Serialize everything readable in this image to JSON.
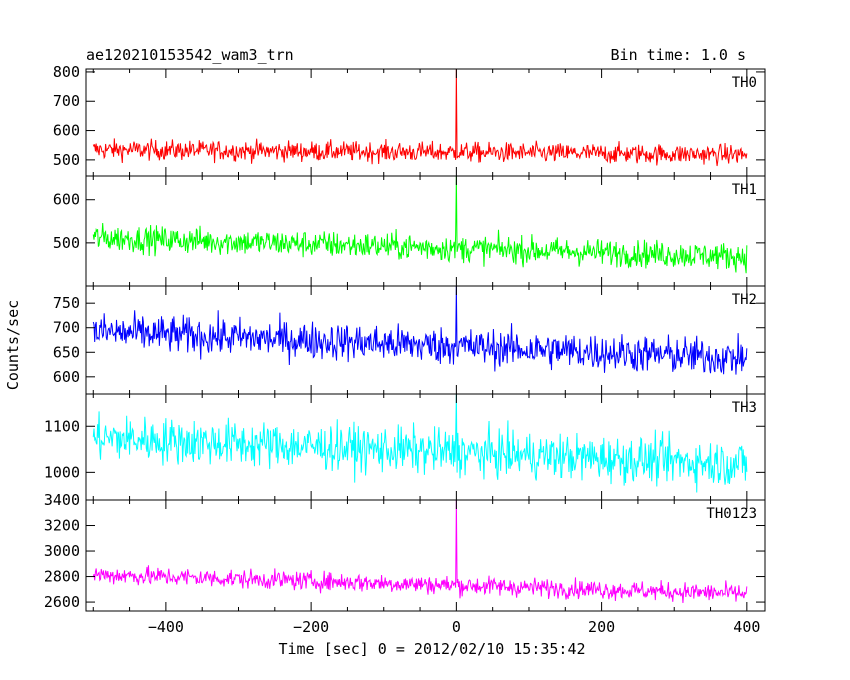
{
  "header": {
    "title": "ae120210153542_wam3_trn",
    "bin_time": "Bin time: 1.0 s"
  },
  "chart_data": {
    "type": "line",
    "xlabel": "Time [sec] 0 = 2012/02/10 15:35:42",
    "ylabel": "Counts/sec",
    "xlim": [
      -510,
      425
    ],
    "x_ticks": [
      -400,
      -200,
      0,
      200,
      400
    ],
    "x_tick_labels": [
      "−400",
      "−200",
      "0",
      "200",
      "400"
    ],
    "x_range": [
      -500,
      400
    ],
    "panels": [
      {
        "label": "TH0",
        "color": "#ff0000",
        "ylim": [
          445,
          810
        ],
        "y_ticks": [
          500,
          600,
          700,
          800
        ],
        "y_tick_labels": [
          "500",
          "600",
          "700",
          "800"
        ],
        "baseline_start": 535,
        "baseline_end": 518,
        "noise": 24,
        "spike": 810
      },
      {
        "label": "TH1",
        "color": "#00ff00",
        "ylim": [
          400,
          655
        ],
        "y_ticks": [
          500,
          600
        ],
        "y_tick_labels": [
          "500",
          "600"
        ],
        "baseline_start": 512,
        "baseline_end": 468,
        "noise": 22,
        "spike": 655
      },
      {
        "label": "TH2",
        "color": "#0000ff",
        "ylim": [
          565,
          785
        ],
        "y_ticks": [
          600,
          650,
          700,
          750
        ],
        "y_tick_labels": [
          "600",
          "650",
          "700",
          "750"
        ],
        "baseline_start": 692,
        "baseline_end": 638,
        "noise": 27,
        "spike": 785
      },
      {
        "label": "TH3",
        "color": "#00ffff",
        "ylim": [
          940,
          1170
        ],
        "y_ticks": [
          1000,
          1100
        ],
        "y_tick_labels": [
          "1000",
          "1100"
        ],
        "baseline_start": 1075,
        "baseline_end": 1018,
        "noise": 35,
        "spike": 1170
      },
      {
        "label": "TH0123",
        "color": "#ff00ff",
        "ylim": [
          2530,
          3400
        ],
        "y_ticks": [
          2600,
          2800,
          3000,
          3200,
          3400
        ],
        "y_tick_labels": [
          "2600",
          "2800",
          "3000",
          "3200",
          "3400"
        ],
        "baseline_start": 2815,
        "baseline_end": 2665,
        "noise": 52,
        "spike": 3400
      }
    ]
  }
}
